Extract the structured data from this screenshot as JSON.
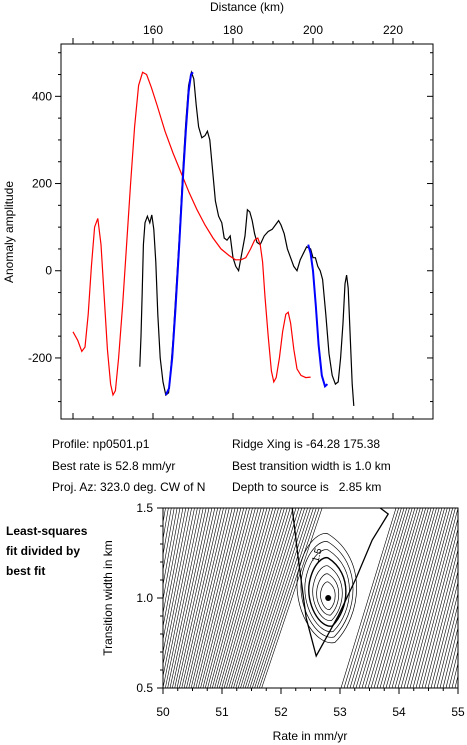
{
  "info": {
    "profile": "Profile: np0501.p1",
    "best_rate": "Best rate is 52.8 mm/yr",
    "proj_az": "Proj. Az: 323.0 deg. CW of N",
    "ridge_xing": "Ridge Xing is -64.28 175.38",
    "best_width": "Best transition width is 1.0 km",
    "depth": "Depth to source is   2.85 km"
  },
  "side_label": [
    "Least-squares",
    "fit divided by",
    "best fit"
  ],
  "chart_data": [
    {
      "type": "line",
      "title": "",
      "xlabel": "Distance (km)",
      "ylabel": "Anomaly amplitude",
      "xlim": [
        137,
        230
      ],
      "ylim": [
        -340,
        520
      ],
      "x_ticks": [
        160,
        180,
        200,
        220
      ],
      "y_ticks": [
        400,
        200,
        0,
        -200
      ],
      "x_axis_position": "top",
      "grid": false,
      "series": [
        {
          "color": "#000000",
          "points": [
            [
              156.7,
              -220
            ],
            [
              157.0,
              -150
            ],
            [
              157.3,
              -50
            ],
            [
              157.6,
              60
            ],
            [
              158.0,
              110
            ],
            [
              158.6,
              125
            ],
            [
              159.2,
              110
            ],
            [
              159.7,
              128
            ],
            [
              160.2,
              95
            ],
            [
              160.7,
              20
            ],
            [
              161.2,
              -100
            ],
            [
              161.8,
              -200
            ],
            [
              162.5,
              -255
            ],
            [
              163.2,
              -285
            ],
            [
              163.9,
              -280
            ],
            [
              164.4,
              -230
            ],
            [
              165.0,
              -160
            ],
            [
              165.8,
              -40
            ],
            [
              166.6,
              80
            ],
            [
              167.4,
              220
            ],
            [
              168.2,
              340
            ],
            [
              168.9,
              425
            ],
            [
              169.6,
              455
            ],
            [
              170.2,
              440
            ],
            [
              170.8,
              380
            ],
            [
              171.4,
              330
            ],
            [
              172.2,
              305
            ],
            [
              173.0,
              310
            ],
            [
              173.6,
              320
            ],
            [
              174.2,
              300
            ],
            [
              174.8,
              240
            ],
            [
              175.6,
              160
            ],
            [
              176.4,
              125
            ],
            [
              177.2,
              110
            ],
            [
              177.8,
              75
            ],
            [
              178.5,
              70
            ],
            [
              179.3,
              80
            ],
            [
              180.0,
              30
            ],
            [
              180.7,
              10
            ],
            [
              181.4,
              0
            ],
            [
              182.2,
              40
            ],
            [
              183.0,
              80
            ],
            [
              183.6,
              140
            ],
            [
              184.2,
              135
            ],
            [
              184.8,
              115
            ],
            [
              185.4,
              85
            ],
            [
              186.0,
              65
            ],
            [
              186.8,
              60
            ],
            [
              187.8,
              80
            ],
            [
              188.8,
              90
            ],
            [
              189.8,
              95
            ],
            [
              190.6,
              105
            ],
            [
              191.4,
              115
            ],
            [
              192.0,
              105
            ],
            [
              192.8,
              85
            ],
            [
              193.6,
              50
            ],
            [
              194.4,
              30
            ],
            [
              195.2,
              10
            ],
            [
              196.0,
              0
            ],
            [
              196.8,
              25
            ],
            [
              197.6,
              40
            ],
            [
              198.4,
              55
            ],
            [
              199.4,
              50
            ],
            [
              200.0,
              30
            ],
            [
              200.6,
              30
            ],
            [
              201.2,
              10
            ],
            [
              201.8,
              0
            ],
            [
              202.4,
              -20
            ],
            [
              203.2,
              -100
            ],
            [
              204.0,
              -190
            ],
            [
              204.8,
              -240
            ],
            [
              205.6,
              -260
            ],
            [
              206.3,
              -255
            ],
            [
              206.9,
              -200
            ],
            [
              207.5,
              -120
            ],
            [
              208.0,
              -30
            ],
            [
              208.4,
              -10
            ],
            [
              208.8,
              -40
            ],
            [
              209.3,
              -150
            ],
            [
              209.8,
              -260
            ],
            [
              210.2,
              -310
            ]
          ]
        },
        {
          "color": "#0000ff",
          "points": [
            [
              163.2,
              -285
            ],
            [
              164.0,
              -270
            ],
            [
              164.8,
              -200
            ],
            [
              165.6,
              -90
            ],
            [
              166.5,
              50
            ],
            [
              167.4,
              200
            ],
            [
              168.2,
              320
            ],
            [
              168.9,
              410
            ],
            [
              169.5,
              450
            ],
            [
              170.0,
              455
            ],
            [
              198.8,
              60
            ],
            [
              199.4,
              40
            ],
            [
              200.0,
              0
            ],
            [
              200.7,
              -80
            ],
            [
              201.4,
              -170
            ],
            [
              202.2,
              -240
            ],
            [
              203.0,
              -265
            ],
            [
              203.6,
              -260
            ]
          ]
        },
        {
          "color": "#ff0000",
          "points": [
            [
              140.0,
              -140
            ],
            [
              141.2,
              -160
            ],
            [
              142.2,
              -185
            ],
            [
              143.0,
              -175
            ],
            [
              143.8,
              -100
            ],
            [
              144.6,
              10
            ],
            [
              145.4,
              100
            ],
            [
              146.2,
              120
            ],
            [
              147.0,
              60
            ],
            [
              147.8,
              -60
            ],
            [
              148.6,
              -180
            ],
            [
              149.4,
              -260
            ],
            [
              150.0,
              -285
            ],
            [
              150.6,
              -275
            ],
            [
              151.4,
              -200
            ],
            [
              152.4,
              -80
            ],
            [
              153.4,
              60
            ],
            [
              154.4,
              200
            ],
            [
              155.4,
              330
            ],
            [
              156.4,
              425
            ],
            [
              157.4,
              455
            ],
            [
              158.4,
              450
            ],
            [
              159.6,
              420
            ],
            [
              161.0,
              380
            ],
            [
              163.0,
              320
            ],
            [
              165.0,
              270
            ],
            [
              167.0,
              225
            ],
            [
              169.0,
              180
            ],
            [
              171.0,
              140
            ],
            [
              173.0,
              105
            ],
            [
              175.0,
              75
            ],
            [
              177.0,
              50
            ],
            [
              179.0,
              35
            ],
            [
              180.6,
              25
            ],
            [
              182.0,
              25
            ],
            [
              183.2,
              30
            ],
            [
              184.4,
              50
            ],
            [
              185.4,
              70
            ],
            [
              186.2,
              75
            ],
            [
              186.8,
              60
            ],
            [
              187.4,
              20
            ],
            [
              188.0,
              -60
            ],
            [
              188.8,
              -150
            ],
            [
              189.6,
              -230
            ],
            [
              190.2,
              -255
            ],
            [
              190.8,
              -245
            ],
            [
              191.6,
              -200
            ],
            [
              192.4,
              -140
            ],
            [
              193.2,
              -100
            ],
            [
              193.8,
              -95
            ],
            [
              194.4,
              -120
            ],
            [
              195.2,
              -180
            ],
            [
              196.0,
              -225
            ],
            [
              197.0,
              -240
            ],
            [
              198.2,
              -245
            ],
            [
              199.4,
              -244
            ]
          ]
        }
      ]
    },
    {
      "type": "contour",
      "title": "",
      "xlabel": "Rate in mm/yr",
      "ylabel": "Transition width in km",
      "xlim": [
        50,
        55
      ],
      "ylim": [
        0.5,
        1.5
      ],
      "x_ticks": [
        50,
        51,
        52,
        53,
        54,
        55
      ],
      "y_ticks": [
        0.5,
        1.0,
        1.5
      ],
      "best_fit": {
        "rate": 52.8,
        "width": 1.0
      },
      "contour_labels": [
        "1.5"
      ]
    }
  ]
}
